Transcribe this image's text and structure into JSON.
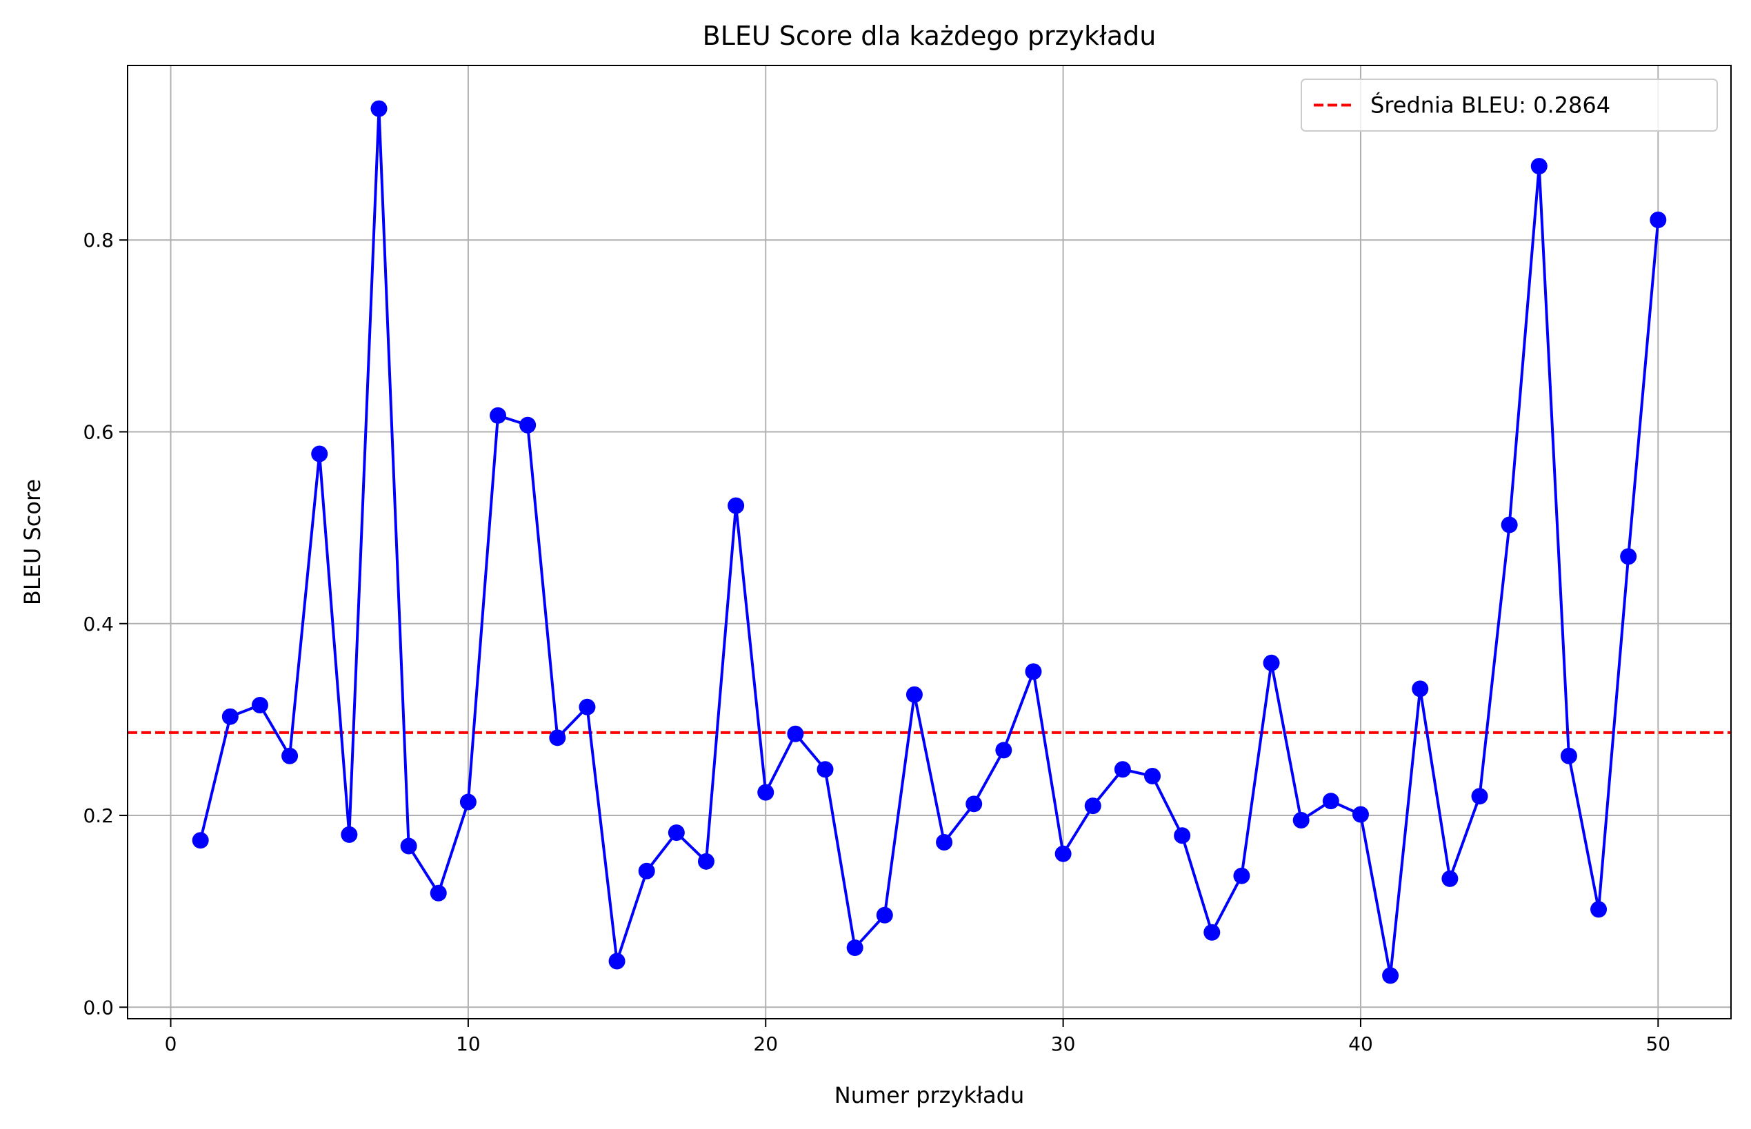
{
  "chart_data": {
    "type": "line",
    "title": "BLEU Score dla każdego przykładu",
    "xlabel": "Numer przykładu",
    "ylabel": "BLEU Score",
    "xlim": [
      -1.45,
      52.45
    ],
    "ylim": [
      -0.012,
      0.982
    ],
    "xticks": [
      0,
      10,
      20,
      30,
      40,
      50
    ],
    "yticks": [
      0.0,
      0.2,
      0.4,
      0.6,
      0.8
    ],
    "xtick_labels": [
      "0",
      "10",
      "20",
      "30",
      "40",
      "50"
    ],
    "ytick_labels": [
      "0.0",
      "0.2",
      "0.4",
      "0.6",
      "0.8"
    ],
    "grid": true,
    "legend_position": "top-right",
    "colors": {
      "series": "#0000ff",
      "mean": "#ff0000",
      "grid": "#b0b0b0"
    },
    "series": [
      {
        "x": [
          1,
          2,
          3,
          4,
          5,
          6,
          7,
          8,
          9,
          10,
          11,
          12,
          13,
          14,
          15,
          16,
          17,
          18,
          19,
          20,
          21,
          22,
          23,
          24,
          25,
          26,
          27,
          28,
          29,
          30,
          31,
          32,
          33,
          34,
          35,
          36,
          37,
          38,
          39,
          40,
          41,
          42,
          43,
          44,
          45,
          46,
          47,
          48,
          49,
          50
        ],
        "values": [
          0.174,
          0.303,
          0.315,
          0.262,
          0.577,
          0.18,
          0.937,
          0.168,
          0.119,
          0.214,
          0.617,
          0.607,
          0.281,
          0.313,
          0.048,
          0.142,
          0.182,
          0.152,
          0.523,
          0.224,
          0.285,
          0.248,
          0.062,
          0.096,
          0.326,
          0.172,
          0.212,
          0.268,
          0.35,
          0.16,
          0.21,
          0.248,
          0.241,
          0.179,
          0.078,
          0.137,
          0.359,
          0.195,
          0.215,
          0.201,
          0.033,
          0.332,
          0.134,
          0.22,
          0.503,
          0.877,
          0.262,
          0.102,
          0.47,
          0.821
        ]
      }
    ],
    "reference_line": {
      "value": 0.2864,
      "label": "Średnia BLEU: 0.2864"
    }
  }
}
